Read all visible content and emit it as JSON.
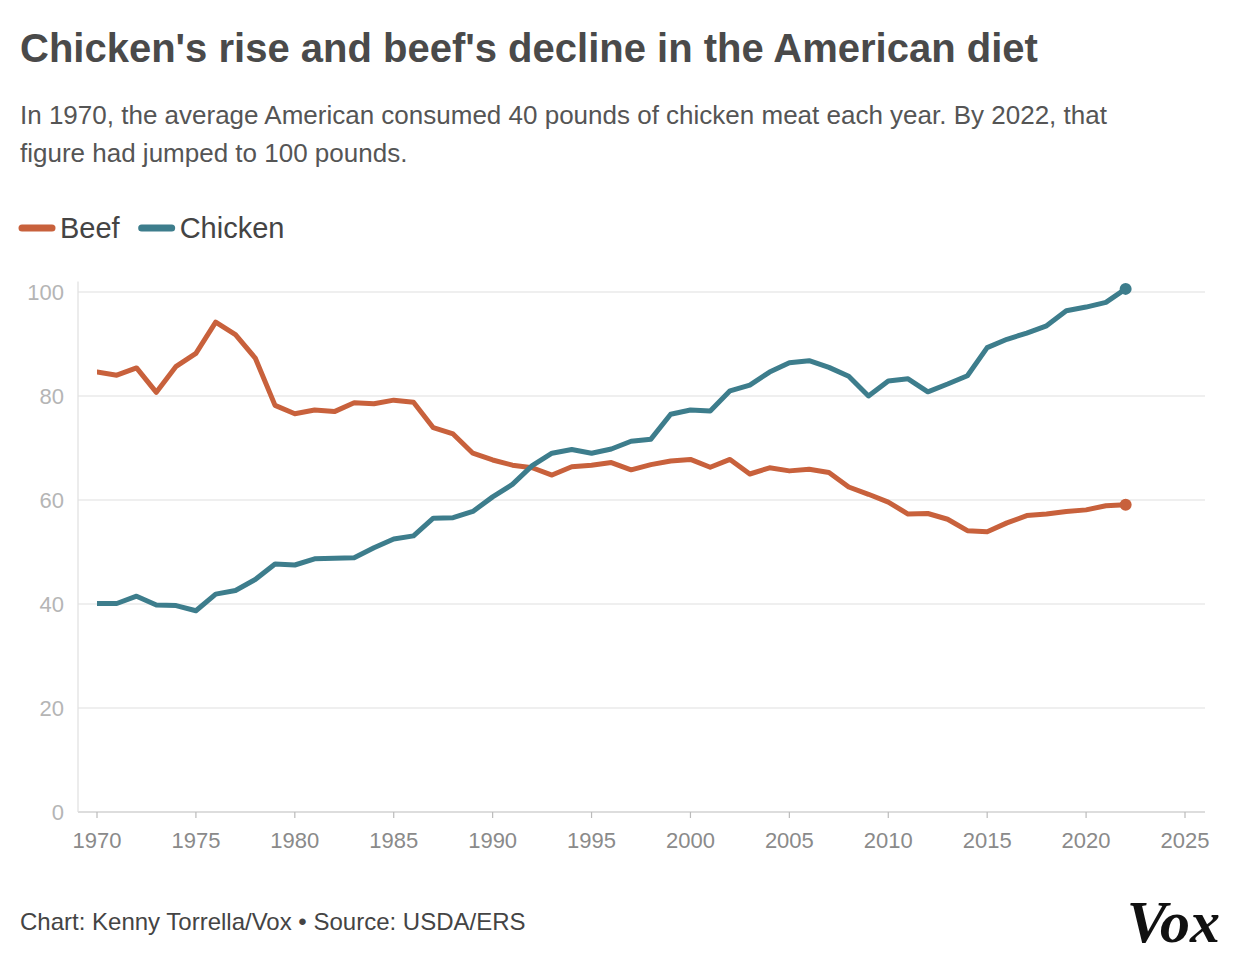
{
  "chart_data": {
    "type": "line",
    "title": "Chicken's rise and beef's decline in the American diet",
    "subtitle": "In 1970, the average American consumed 40 pounds of chicken meat each year. By 2022, that figure had jumped to 100 pounds.",
    "source": "Chart: Kenny Torrella/Vox • Source: USDA/ERS",
    "logo": "Vox",
    "legend": "top-left",
    "grid": true,
    "x": [
      1970,
      1971,
      1972,
      1973,
      1974,
      1975,
      1976,
      1977,
      1978,
      1979,
      1980,
      1981,
      1982,
      1983,
      1984,
      1985,
      1986,
      1987,
      1988,
      1989,
      1990,
      1991,
      1992,
      1993,
      1994,
      1995,
      1996,
      1997,
      1998,
      1999,
      2000,
      2001,
      2002,
      2003,
      2004,
      2005,
      2006,
      2007,
      2008,
      2009,
      2010,
      2011,
      2012,
      2013,
      2014,
      2015,
      2016,
      2017,
      2018,
      2019,
      2020,
      2021,
      2022
    ],
    "xlim": [
      1970,
      2025
    ],
    "xticks": [
      1970,
      1975,
      1980,
      1985,
      1990,
      1995,
      2000,
      2005,
      2010,
      2015,
      2020,
      2025
    ],
    "ylim": [
      0,
      102
    ],
    "yticks": [
      0,
      20,
      40,
      60,
      80,
      100
    ],
    "series": [
      {
        "name": "Beef",
        "color": "#c8613c",
        "values": [
          84.6,
          84.0,
          85.4,
          80.7,
          85.7,
          88.2,
          94.2,
          91.8,
          87.3,
          78.2,
          76.6,
          77.3,
          77.0,
          78.7,
          78.5,
          79.2,
          78.8,
          73.9,
          72.7,
          69.0,
          67.7,
          66.7,
          66.2,
          64.8,
          66.4,
          66.7,
          67.2,
          65.8,
          66.8,
          67.5,
          67.8,
          66.3,
          67.8,
          65.0,
          66.2,
          65.6,
          65.9,
          65.3,
          62.5,
          61.1,
          59.6,
          57.3,
          57.4,
          56.3,
          54.1,
          53.9,
          55.6,
          57.0,
          57.3,
          57.8,
          58.1,
          58.9,
          59.1
        ]
      },
      {
        "name": "Chicken",
        "color": "#3d7d8c",
        "values": [
          40.1,
          40.1,
          41.5,
          39.8,
          39.7,
          38.7,
          41.9,
          42.6,
          44.7,
          47.7,
          47.5,
          48.7,
          48.8,
          48.9,
          50.8,
          52.5,
          53.1,
          56.5,
          56.6,
          57.8,
          60.6,
          63.0,
          66.6,
          69.0,
          69.7,
          69.0,
          69.8,
          71.3,
          71.7,
          76.5,
          77.3,
          77.1,
          81.0,
          82.1,
          84.6,
          86.4,
          86.8,
          85.5,
          83.8,
          80.0,
          82.9,
          83.3,
          80.8,
          82.3,
          83.9,
          89.3,
          90.9,
          92.1,
          93.5,
          96.4,
          97.1,
          98.0,
          100.6
        ]
      }
    ]
  }
}
